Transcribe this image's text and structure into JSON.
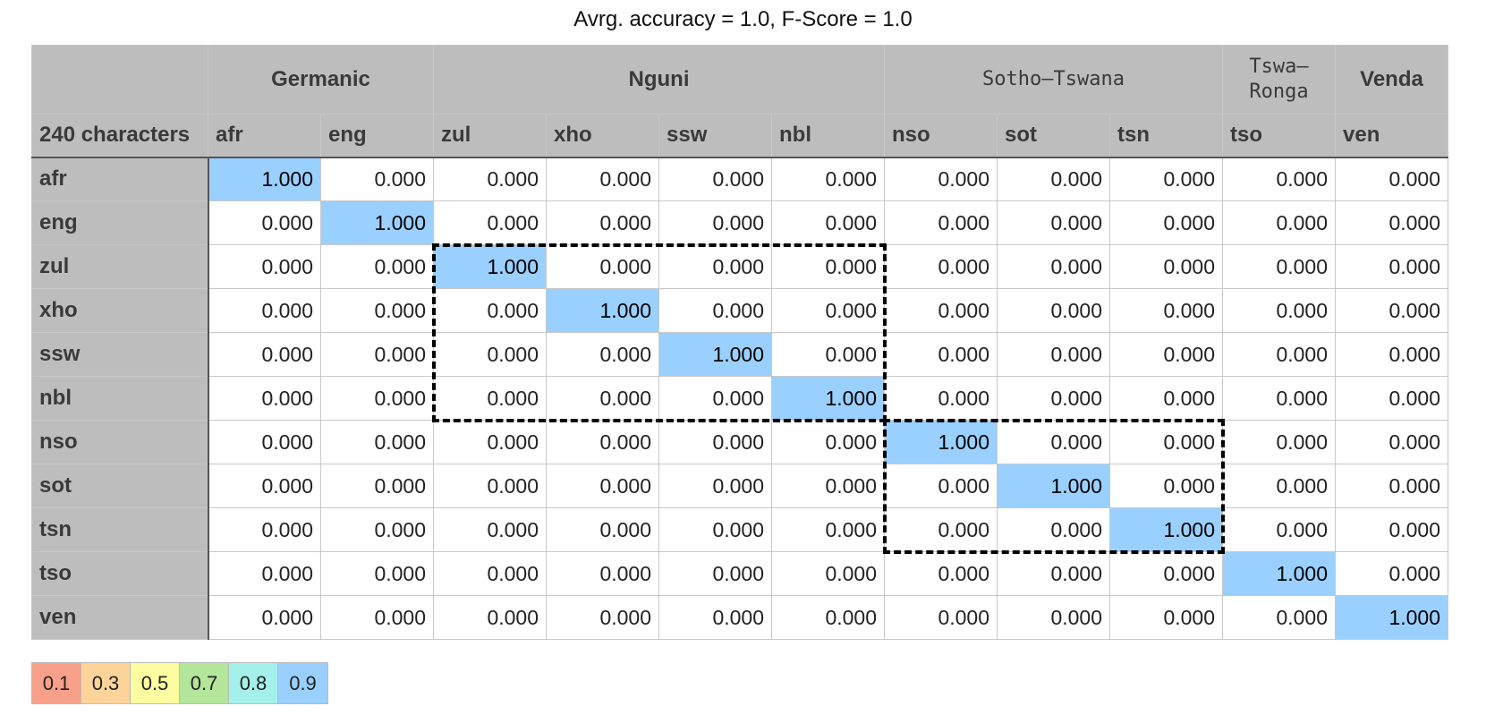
{
  "title": "Avrg. accuracy = 1.0, F-Score = 1.0",
  "corner_label": "240 characters",
  "groups": [
    {
      "label": "Germanic",
      "span": 2,
      "mono": false
    },
    {
      "label": "Nguni",
      "span": 4,
      "mono": false
    },
    {
      "label": "Sotho–Tswana",
      "span": 3,
      "mono": true
    },
    {
      "label": "Tswa–\nRonga",
      "span": 1,
      "mono": true
    },
    {
      "label": "Venda",
      "span": 1,
      "mono": false
    }
  ],
  "legend": [
    {
      "label": "0.1",
      "color": "#f9a08a"
    },
    {
      "label": "0.3",
      "color": "#fcd49a"
    },
    {
      "label": "0.5",
      "color": "#fdfca0"
    },
    {
      "label": "0.7",
      "color": "#b3e59a"
    },
    {
      "label": "0.8",
      "color": "#a4f0ea"
    },
    {
      "label": "0.9",
      "color": "#9ad0ff"
    }
  ],
  "chart_data": {
    "type": "heatmap",
    "title": "Avrg. accuracy = 1.0, F-Score = 1.0",
    "columns": [
      "afr",
      "eng",
      "zul",
      "xho",
      "ssw",
      "nbl",
      "nso",
      "sot",
      "tsn",
      "tso",
      "ven"
    ],
    "rows": [
      "afr",
      "eng",
      "zul",
      "xho",
      "ssw",
      "nbl",
      "nso",
      "sot",
      "tsn",
      "tso",
      "ven"
    ],
    "values": [
      [
        "1.000",
        "0.000",
        "0.000",
        "0.000",
        "0.000",
        "0.000",
        "0.000",
        "0.000",
        "0.000",
        "0.000",
        "0.000"
      ],
      [
        "0.000",
        "1.000",
        "0.000",
        "0.000",
        "0.000",
        "0.000",
        "0.000",
        "0.000",
        "0.000",
        "0.000",
        "0.000"
      ],
      [
        "0.000",
        "0.000",
        "1.000",
        "0.000",
        "0.000",
        "0.000",
        "0.000",
        "0.000",
        "0.000",
        "0.000",
        "0.000"
      ],
      [
        "0.000",
        "0.000",
        "0.000",
        "1.000",
        "0.000",
        "0.000",
        "0.000",
        "0.000",
        "0.000",
        "0.000",
        "0.000"
      ],
      [
        "0.000",
        "0.000",
        "0.000",
        "0.000",
        "1.000",
        "0.000",
        "0.000",
        "0.000",
        "0.000",
        "0.000",
        "0.000"
      ],
      [
        "0.000",
        "0.000",
        "0.000",
        "0.000",
        "0.000",
        "1.000",
        "0.000",
        "0.000",
        "0.000",
        "0.000",
        "0.000"
      ],
      [
        "0.000",
        "0.000",
        "0.000",
        "0.000",
        "0.000",
        "0.000",
        "1.000",
        "0.000",
        "0.000",
        "0.000",
        "0.000"
      ],
      [
        "0.000",
        "0.000",
        "0.000",
        "0.000",
        "0.000",
        "0.000",
        "0.000",
        "1.000",
        "0.000",
        "0.000",
        "0.000"
      ],
      [
        "0.000",
        "0.000",
        "0.000",
        "0.000",
        "0.000",
        "0.000",
        "0.000",
        "0.000",
        "1.000",
        "0.000",
        "0.000"
      ],
      [
        "0.000",
        "0.000",
        "0.000",
        "0.000",
        "0.000",
        "0.000",
        "0.000",
        "0.000",
        "0.000",
        "1.000",
        "0.000"
      ],
      [
        "0.000",
        "0.000",
        "0.000",
        "0.000",
        "0.000",
        "0.000",
        "0.000",
        "0.000",
        "0.000",
        "0.000",
        "1.000"
      ]
    ],
    "highlight_color": "#9ad0ff",
    "dashed_groups": [
      {
        "from": "zul",
        "to": "nbl"
      },
      {
        "from": "nso",
        "to": "tsn"
      }
    ]
  }
}
